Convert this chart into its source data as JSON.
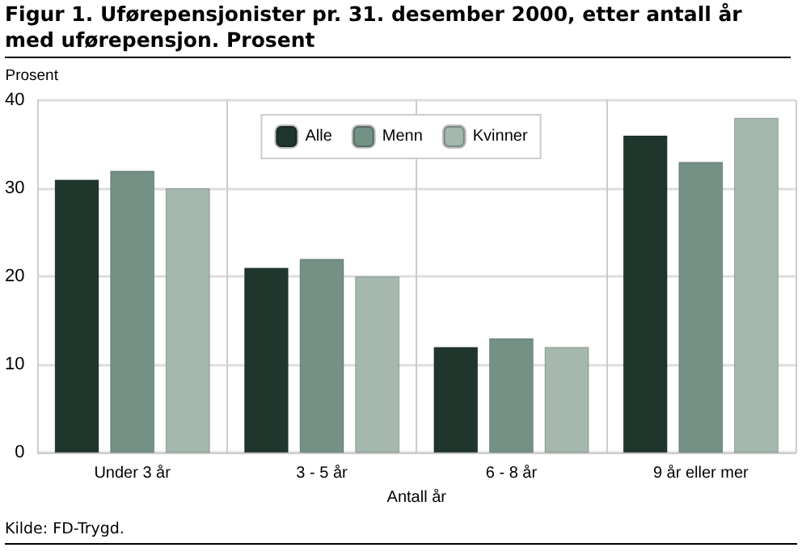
{
  "chart_data": {
    "type": "bar",
    "title": "Figur 1. Uførepensjonister pr. 31. desember 2000, etter antall år med uførepensjon. Prosent",
    "categories": [
      "Under 3 år",
      "3 - 5 år",
      "6 - 8 år",
      "9 år eller mer"
    ],
    "series": [
      {
        "name": "Alle",
        "color": "#1f362d",
        "values": [
          31,
          21,
          12,
          36
        ]
      },
      {
        "name": "Menn",
        "color": "#739184",
        "values": [
          32,
          22,
          13,
          33
        ]
      },
      {
        "name": "Kvinner",
        "color": "#a4b8ad",
        "values": [
          30,
          20,
          12,
          38
        ]
      }
    ],
    "xlabel": "Antall år",
    "ylabel": "Prosent",
    "ylim": [
      0,
      40
    ],
    "yticks": [
      0,
      10,
      20,
      30,
      40
    ],
    "grid": true,
    "legend": "top",
    "annotations": [
      "Kilde: FD-Trygd."
    ]
  }
}
